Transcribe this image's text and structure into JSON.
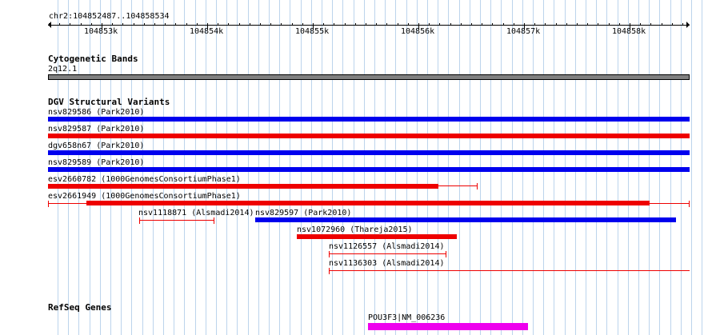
{
  "locus": "chr2:104852487..104858534",
  "ruler": {
    "ticks": [
      "104853k",
      "104854k",
      "104855k",
      "104856k",
      "104857k",
      "104858k"
    ]
  },
  "cytoband": {
    "title": "Cytogenetic Bands",
    "band": "2q12.1",
    "color": "#808080"
  },
  "dgv": {
    "title": "DGV Structural Variants",
    "colors": {
      "blue": "#0000ee",
      "red": "#ee0000"
    },
    "variants": [
      {
        "label": "nsv829586 (Park2010)"
      },
      {
        "label": "nsv829587 (Park2010)"
      },
      {
        "label": "dgv658n67 (Park2010)"
      },
      {
        "label": "nsv829589 (Park2010)"
      },
      {
        "label": "esv2660782 (1000GenomesConsortiumPhase1)"
      },
      {
        "label": "esv2661949 (1000GenomesConsortiumPhase1)"
      },
      {
        "label": "nsv1118871 (Alsmadi2014)"
      },
      {
        "label": "nsv829597 (Park2010)"
      },
      {
        "label": "nsv1072960 (Thareja2015)"
      },
      {
        "label": "nsv1126557 (Alsmadi2014)"
      },
      {
        "label": "nsv1136303 (Alsmadi2014)"
      }
    ]
  },
  "refseq": {
    "title": "RefSeq Genes",
    "gene_label": "POU3F3|NM_006236",
    "color": "#ee00ee"
  }
}
